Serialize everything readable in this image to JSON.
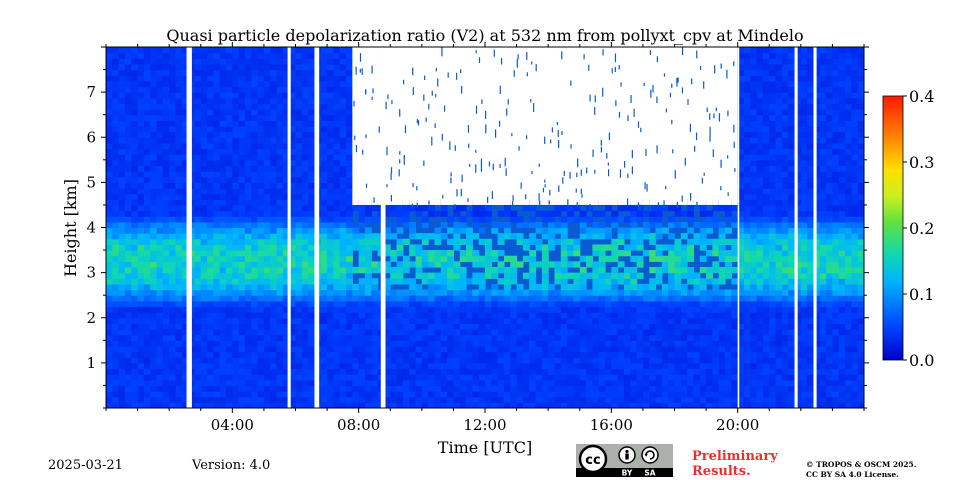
{
  "chart_data": {
    "type": "heatmap",
    "title": "Quasi particle depolarization ratio (V2) at 532 nm from pollyxt_cpv at Mindelo",
    "xlabel": "Time [UTC]",
    "ylabel": "Height [km]",
    "x_ticks": [
      "04:00",
      "08:00",
      "12:00",
      "16:00",
      "20:00"
    ],
    "x_tick_hours": [
      4,
      8,
      12,
      16,
      20
    ],
    "xlim_hours": [
      0,
      24
    ],
    "y_ticks": [
      "1",
      "2",
      "3",
      "4",
      "5",
      "6",
      "7"
    ],
    "y_tick_values": [
      1,
      2,
      3,
      4,
      5,
      6,
      7
    ],
    "ylim": [
      0,
      8
    ],
    "colorbar": {
      "ticks": [
        "0.0",
        "0.1",
        "0.2",
        "0.3",
        "0.4"
      ],
      "values": [
        0.0,
        0.1,
        0.2,
        0.3,
        0.4
      ],
      "range": [
        0.0,
        0.4
      ],
      "colormap": "jet"
    },
    "data_gaps_hours": [
      [
        2.55,
        2.72
      ],
      [
        5.75,
        5.85
      ],
      [
        6.6,
        6.75
      ],
      [
        8.7,
        8.85
      ],
      [
        20.0,
        20.05
      ],
      [
        21.8,
        21.9
      ],
      [
        22.4,
        22.5
      ]
    ],
    "dust_layer_km": [
      2.2,
      4.2
    ],
    "dust_layer_value": 0.15,
    "background_value": 0.03
  },
  "footer": {
    "date": "2025-03-21",
    "version": "Version: 4.0",
    "preliminary_line1": "Preliminary",
    "preliminary_line2": "Results.",
    "copyright_line1": "© TROPOS & OSCM 2025.",
    "copyright_line2": "CC BY SA 4.0 License.",
    "license_badge": {
      "cc": "cc",
      "by": "BY",
      "sa": "SA"
    }
  },
  "colors": {
    "background_field": "#0a5ad2",
    "preliminary": "#e8312f"
  }
}
